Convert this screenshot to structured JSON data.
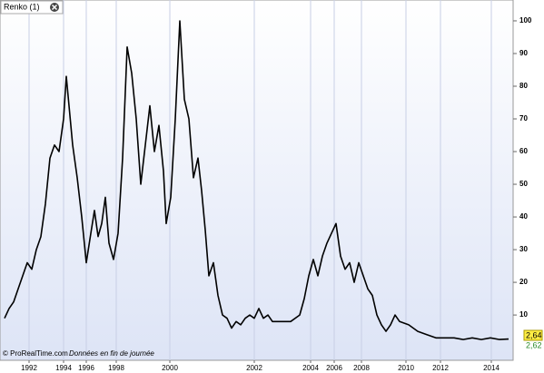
{
  "chart_data": {
    "type": "line",
    "title": "Renko (1)",
    "footer": "© ProRealTime.com",
    "footer_note": "Données en fin de journée",
    "price_labels": [
      "2,64",
      "2,62"
    ],
    "x": [
      5,
      10,
      15,
      20,
      25,
      30,
      35,
      40,
      45,
      50,
      55,
      60,
      65,
      70,
      73,
      76,
      80,
      85,
      90,
      95,
      100,
      104,
      108,
      112,
      116,
      120,
      125,
      130,
      135,
      140,
      145,
      150,
      155,
      160,
      165,
      170,
      175,
      180,
      183,
      188,
      193,
      198,
      203,
      208,
      213,
      218,
      222,
      226,
      230,
      235,
      240,
      245,
      250,
      255,
      260,
      265,
      270,
      275,
      280,
      285,
      290,
      295,
      300,
      310,
      320,
      330,
      335,
      340,
      345,
      350,
      355,
      360,
      365,
      370,
      375,
      380,
      385,
      390,
      395,
      400,
      405,
      410,
      415,
      420,
      425,
      430,
      435,
      440,
      450,
      460,
      470,
      480,
      490,
      500,
      510,
      520,
      530,
      540,
      550,
      560
    ],
    "series": [
      {
        "name": "Renko",
        "color": "#000000",
        "values": [
          9,
          12,
          14,
          18,
          22,
          26,
          24,
          30,
          34,
          44,
          58,
          62,
          60,
          70,
          83,
          74,
          62,
          52,
          40,
          26,
          35,
          42,
          34,
          38,
          46,
          32,
          27,
          35,
          58,
          92,
          84,
          70,
          50,
          62,
          74,
          60,
          68,
          54,
          38,
          46,
          70,
          100,
          76,
          70,
          52,
          58,
          48,
          36,
          22,
          26,
          16,
          10,
          9,
          6,
          8,
          7,
          9,
          10,
          9,
          12,
          9,
          10,
          8,
          8,
          8,
          10,
          15,
          22,
          27,
          22,
          28,
          32,
          35,
          38,
          28,
          24,
          26,
          20,
          26,
          22,
          18,
          16,
          10,
          7,
          5,
          7,
          10,
          8,
          7,
          5,
          4,
          3,
          3,
          3,
          2.5,
          3,
          2.5,
          3,
          2.5,
          2.64
        ]
      }
    ],
    "xlim": [
      0,
      565
    ],
    "xticks": [
      {
        "value": 32,
        "label": "1992"
      },
      {
        "value": 70,
        "label": "1994"
      },
      {
        "value": 95,
        "label": "1996"
      },
      {
        "value": 128,
        "label": "1998"
      },
      {
        "value": 187,
        "label": "2000"
      },
      {
        "value": 280,
        "label": "2002"
      },
      {
        "value": 342,
        "label": "2004"
      },
      {
        "value": 368,
        "label": "2006"
      },
      {
        "value": 398,
        "label": "2008"
      },
      {
        "value": 447,
        "label": "2010"
      },
      {
        "value": 485,
        "label": "2012"
      },
      {
        "value": 541,
        "label": "2014"
      }
    ],
    "ylim": [
      -3.3,
      103.6
    ],
    "yticks": [
      10,
      20,
      30,
      40,
      50,
      60,
      70,
      80,
      90,
      100
    ],
    "grid": true
  }
}
